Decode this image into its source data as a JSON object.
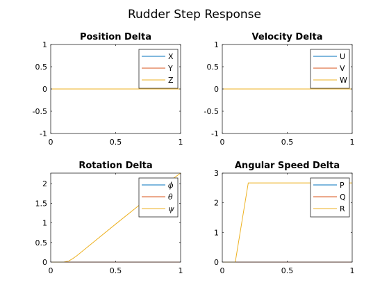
{
  "figure": {
    "title": "Rudder Step Response"
  },
  "chart_data": [
    {
      "type": "line",
      "title": "Position Delta",
      "xlabel": "",
      "ylabel": "",
      "xlim": [
        0,
        1
      ],
      "ylim": [
        -1,
        1
      ],
      "xticks": [
        "0",
        "0.5",
        "1"
      ],
      "yticks": [
        "-1",
        "-0.5",
        "0",
        "0.5",
        "1"
      ],
      "legend_position": "top-right",
      "series": [
        {
          "name": "X",
          "color": "#0072BD",
          "x": [
            0,
            1
          ],
          "y": [
            0,
            0
          ]
        },
        {
          "name": "Y",
          "color": "#D95319",
          "x": [
            0,
            1
          ],
          "y": [
            0,
            0
          ]
        },
        {
          "name": "Z",
          "color": "#EDB120",
          "x": [
            0,
            1
          ],
          "y": [
            0,
            0
          ]
        }
      ]
    },
    {
      "type": "line",
      "title": "Velocity Delta",
      "xlabel": "",
      "ylabel": "",
      "xlim": [
        0,
        1
      ],
      "ylim": [
        -1,
        1
      ],
      "xticks": [
        "0",
        "0.5",
        "1"
      ],
      "yticks": [
        "-1",
        "-0.5",
        "0",
        "0.5",
        "1"
      ],
      "legend_position": "top-right",
      "series": [
        {
          "name": "U",
          "color": "#0072BD",
          "x": [
            0,
            1
          ],
          "y": [
            0,
            0
          ]
        },
        {
          "name": "V",
          "color": "#D95319",
          "x": [
            0,
            1
          ],
          "y": [
            0,
            0
          ]
        },
        {
          "name": "W",
          "color": "#EDB120",
          "x": [
            0,
            1
          ],
          "y": [
            0,
            0
          ]
        }
      ]
    },
    {
      "type": "line",
      "title": "Rotation Delta",
      "xlabel": "",
      "ylabel": "",
      "xlim": [
        0,
        1
      ],
      "ylim": [
        0,
        2.27
      ],
      "xticks": [
        "0",
        "0.5",
        "1"
      ],
      "yticks": [
        "0",
        "0.5",
        "1",
        "1.5",
        "2"
      ],
      "legend_position": "top-right",
      "series": [
        {
          "name": "ϕ",
          "color": "#0072BD",
          "x": [
            0,
            1
          ],
          "y": [
            0,
            0
          ]
        },
        {
          "name": "θ",
          "color": "#D95319",
          "x": [
            0,
            1
          ],
          "y": [
            0,
            0
          ]
        },
        {
          "name": "ψ",
          "color": "#EDB120",
          "x": [
            0,
            0.1,
            0.14,
            0.17,
            0.2,
            0.3,
            0.5,
            0.7,
            0.9,
            1.0
          ],
          "y": [
            0,
            0,
            0.03,
            0.09,
            0.16,
            0.43,
            0.97,
            1.5,
            2.03,
            2.27
          ]
        }
      ]
    },
    {
      "type": "line",
      "title": "Angular Speed Delta",
      "xlabel": "",
      "ylabel": "",
      "xlim": [
        0,
        1
      ],
      "ylim": [
        0,
        3
      ],
      "xticks": [
        "0",
        "0.5",
        "1"
      ],
      "yticks": [
        "0",
        "1",
        "2",
        "3"
      ],
      "legend_position": "top-right",
      "series": [
        {
          "name": "P",
          "color": "#0072BD",
          "x": [
            0,
            1
          ],
          "y": [
            0,
            0
          ]
        },
        {
          "name": "Q",
          "color": "#D95319",
          "x": [
            0,
            1
          ],
          "y": [
            0,
            0
          ]
        },
        {
          "name": "R",
          "color": "#EDB120",
          "x": [
            0,
            0.1,
            0.2,
            1.0
          ],
          "y": [
            0,
            0,
            2.67,
            2.67
          ]
        }
      ]
    }
  ]
}
